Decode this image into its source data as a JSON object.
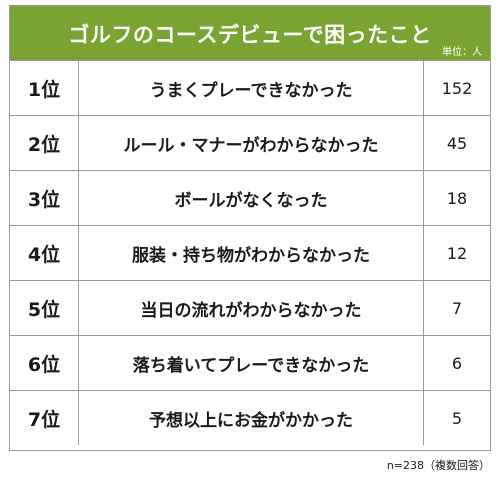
{
  "chart_data": {
    "type": "table",
    "title": "ゴルフのコースデビューで困ったこと",
    "unit": "単位：人",
    "note": "n=238（複数回答）",
    "rows": [
      {
        "rank": "1位",
        "item": "うまくプレーできなかった",
        "value": 152
      },
      {
        "rank": "2位",
        "item": "ルール・マナーがわからなかった",
        "value": 45
      },
      {
        "rank": "3位",
        "item": "ボールがなくなった",
        "value": 18
      },
      {
        "rank": "4位",
        "item": "服装・持ち物がわからなかった",
        "value": 12
      },
      {
        "rank": "5位",
        "item": "当日の流れがわからなかった",
        "value": 7
      },
      {
        "rank": "6位",
        "item": "落ち着いてプレーできなかった",
        "value": 6
      },
      {
        "rank": "7位",
        "item": "予想以上にお金がかかった",
        "value": 5
      }
    ]
  },
  "colors": {
    "header_bg": "#7aa431",
    "header_text": "#ffffff",
    "border": "#9a9a9a"
  }
}
